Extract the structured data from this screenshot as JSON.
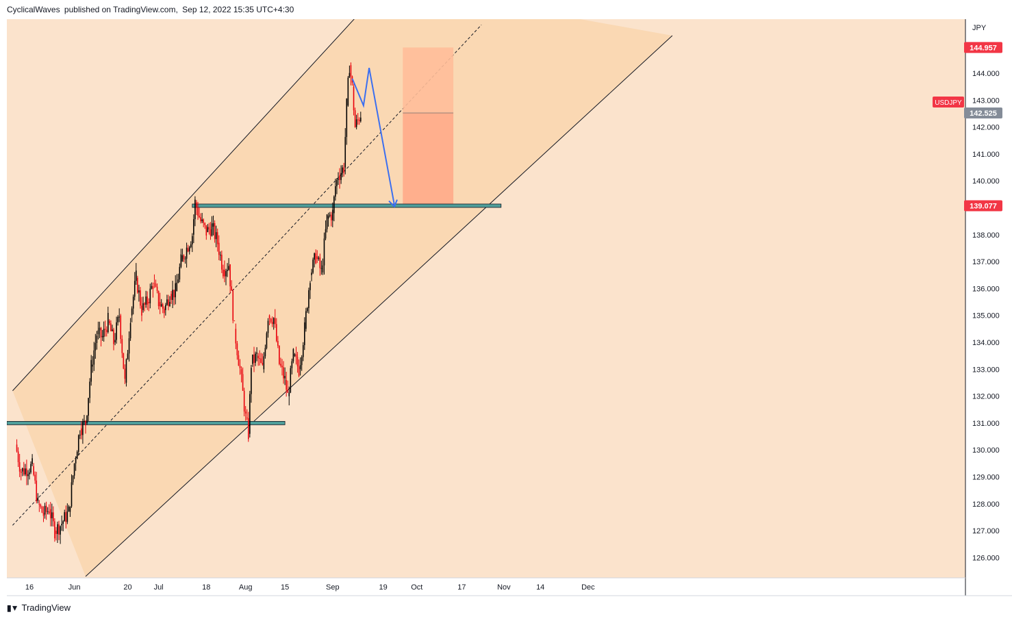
{
  "header": {
    "author": "CyclicalWaves",
    "published_text": "published on TradingView.com,",
    "datetime": "Sep 12, 2022 15:35 UTC+4:30"
  },
  "footer": {
    "brand": "TradingView",
    "logo_icon": "tradingview-logo-icon"
  },
  "colors": {
    "channel_fill": "#fad8b3",
    "background": "#fbe3cc",
    "candle_up": "#000000",
    "candle_down": "#e8000b",
    "support_band": "#4f9e9a",
    "target_box": "#ffad8b",
    "target_box_upper": "#ffbe99",
    "projection_line": "#3b6ff0",
    "price_tag_red": "#f23645",
    "price_tag_gray": "#848c98"
  },
  "chart_data": {
    "type": "candlestick",
    "symbol": "USDJPY",
    "currency_label": "JPY",
    "y_range": [
      125.3,
      146.0
    ],
    "y_ticks": [
      "126.000",
      "127.000",
      "128.000",
      "129.000",
      "130.000",
      "131.000",
      "132.000",
      "133.000",
      "134.000",
      "135.000",
      "136.000",
      "137.000",
      "138.000",
      "139.000",
      "140.000",
      "141.000",
      "142.000",
      "143.000",
      "144.000"
    ],
    "x_ticks": [
      "16",
      "Jun",
      "20",
      "Jul",
      "18",
      "Aug",
      "15",
      "Sep",
      "19",
      "Oct",
      "17",
      "Nov",
      "14",
      "Dec"
    ],
    "price_tags": [
      {
        "label": "144.957",
        "value": 144.957,
        "style": "red"
      },
      {
        "label": "142.525",
        "value": 142.525,
        "style": "gray"
      },
      {
        "label": "139.077",
        "value": 139.077,
        "style": "red"
      }
    ],
    "symbol_tag": "USDJPY",
    "support_levels": [
      131.0,
      139.077
    ],
    "target_box": {
      "from": "Sep 26",
      "to": "Oct 14",
      "top": 144.957,
      "entry": 142.525,
      "bottom": 139.077
    },
    "projection": [
      {
        "date": "Sep 8",
        "price": 143.8
      },
      {
        "date": "Sep 12",
        "price": 142.8
      },
      {
        "date": "Sep 14",
        "price": 144.2
      },
      {
        "date": "Sep 23",
        "price": 139.1
      }
    ],
    "channel": {
      "upper": [
        {
          "date": "May 10",
          "price": 132.2
        },
        {
          "date": "Sep 20",
          "price": 147.3
        }
      ],
      "middle": [
        {
          "date": "May 10",
          "price": 127.2
        },
        {
          "date": "Oct 24",
          "price": 145.8
        }
      ],
      "lower": [
        {
          "date": "Jun 5",
          "price": 125.3
        },
        {
          "date": "Dec 31",
          "price": 145.4
        }
      ]
    },
    "closes": [
      {
        "date": "May 11",
        "close": 130.2
      },
      {
        "date": "May 13",
        "close": 129.2
      },
      {
        "date": "May 17",
        "close": 129.4
      },
      {
        "date": "May 19",
        "close": 128.0
      },
      {
        "date": "May 21",
        "close": 127.6
      },
      {
        "date": "May 23",
        "close": 127.8
      },
      {
        "date": "May 25",
        "close": 127.0
      },
      {
        "date": "May 27",
        "close": 127.2
      },
      {
        "date": "May 30",
        "close": 127.7
      },
      {
        "date": "Jun 1",
        "close": 129.5
      },
      {
        "date": "Jun 3",
        "close": 130.8
      },
      {
        "date": "Jun 5",
        "close": 131.0
      },
      {
        "date": "Jun 7",
        "close": 133.1
      },
      {
        "date": "Jun 9",
        "close": 134.3
      },
      {
        "date": "Jun 11",
        "close": 134.2
      },
      {
        "date": "Jun 13",
        "close": 134.8
      },
      {
        "date": "Jun 15",
        "close": 134.0
      },
      {
        "date": "Jun 17",
        "close": 135.0
      },
      {
        "date": "Jun 19",
        "close": 132.5
      },
      {
        "date": "Jun 21",
        "close": 135.0
      },
      {
        "date": "Jun 23",
        "close": 136.4
      },
      {
        "date": "Jun 25",
        "close": 135.2
      },
      {
        "date": "Jun 27",
        "close": 135.5
      },
      {
        "date": "Jun 29",
        "close": 136.2
      },
      {
        "date": "Jul 1",
        "close": 135.5
      },
      {
        "date": "Jul 3",
        "close": 135.2
      },
      {
        "date": "Jul 5",
        "close": 135.8
      },
      {
        "date": "Jul 7",
        "close": 135.9
      },
      {
        "date": "Jul 9",
        "close": 137.0
      },
      {
        "date": "Jul 11",
        "close": 137.5
      },
      {
        "date": "Jul 13",
        "close": 138.0
      },
      {
        "date": "Jul 14",
        "close": 139.2
      },
      {
        "date": "Jul 16",
        "close": 138.5
      },
      {
        "date": "Jul 18",
        "close": 138.1
      },
      {
        "date": "Jul 20",
        "close": 138.3
      },
      {
        "date": "Jul 22",
        "close": 137.7
      },
      {
        "date": "Jul 24",
        "close": 136.7
      },
      {
        "date": "Jul 26",
        "close": 136.9
      },
      {
        "date": "Jul 28",
        "close": 134.5
      },
      {
        "date": "Jul 30",
        "close": 133.0
      },
      {
        "date": "Aug 1",
        "close": 131.2
      },
      {
        "date": "Aug 2",
        "close": 130.6
      },
      {
        "date": "Aug 3",
        "close": 133.2
      },
      {
        "date": "Aug 5",
        "close": 133.5
      },
      {
        "date": "Aug 7",
        "close": 133.0
      },
      {
        "date": "Aug 9",
        "close": 135.0
      },
      {
        "date": "Aug 11",
        "close": 134.9
      },
      {
        "date": "Aug 13",
        "close": 133.2
      },
      {
        "date": "Aug 15",
        "close": 132.6
      },
      {
        "date": "Aug 16",
        "close": 132.0
      },
      {
        "date": "Aug 18",
        "close": 133.5
      },
      {
        "date": "Aug 20",
        "close": 133.0
      },
      {
        "date": "Aug 22",
        "close": 134.5
      },
      {
        "date": "Aug 24",
        "close": 136.5
      },
      {
        "date": "Aug 26",
        "close": 137.2
      },
      {
        "date": "Aug 28",
        "close": 136.6
      },
      {
        "date": "Aug 30",
        "close": 138.6
      },
      {
        "date": "Sep 1",
        "close": 138.8
      },
      {
        "date": "Sep 2",
        "close": 139.8
      },
      {
        "date": "Sep 3",
        "close": 140.2
      },
      {
        "date": "Sep 5",
        "close": 140.5
      },
      {
        "date": "Sep 6",
        "close": 142.8
      },
      {
        "date": "Sep 7",
        "close": 144.3
      },
      {
        "date": "Sep 8",
        "close": 143.5
      },
      {
        "date": "Sep 9",
        "close": 142.0
      },
      {
        "date": "Sep 11",
        "close": 142.5
      }
    ]
  }
}
